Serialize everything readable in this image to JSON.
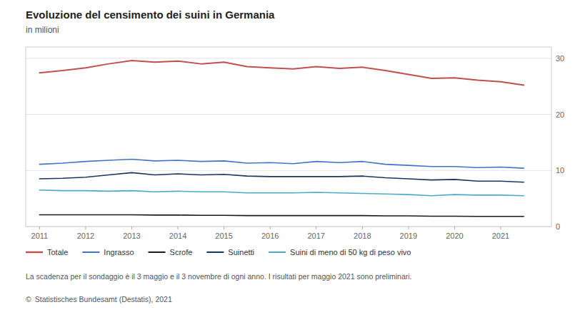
{
  "chart_data": {
    "type": "line",
    "title": "Evoluzione del censimento dei suini in Germania",
    "subtitle": "in milioni",
    "annotations": [
      "La scadenza per il sondaggio è il 3 maggio e il 3 novembre di ogni anno. I risultati per maggio 2021 sono preliminari.",
      "©",
      "Statistisches Bundesamt (Destatis), 2021"
    ],
    "x": [
      2011.0,
      2011.5,
      2012.0,
      2012.5,
      2013.0,
      2013.5,
      2014.0,
      2014.5,
      2015.0,
      2015.5,
      2016.0,
      2016.5,
      2017.0,
      2017.5,
      2018.0,
      2018.5,
      2019.0,
      2019.5,
      2020.0,
      2020.5,
      2021.0,
      2021.5
    ],
    "series": [
      {
        "name": "Totale",
        "color": "#c0504d",
        "values": [
          27.4,
          27.8,
          28.3,
          29.0,
          29.6,
          29.3,
          29.5,
          29.0,
          29.3,
          28.5,
          28.3,
          28.1,
          28.5,
          28.2,
          28.4,
          27.8,
          27.1,
          26.4,
          26.5,
          26.1,
          25.8,
          25.2
        ]
      },
      {
        "name": "Ingrasso",
        "color": "#4472c4",
        "values": [
          11.1,
          11.3,
          11.6,
          11.8,
          12.0,
          11.7,
          11.8,
          11.6,
          11.7,
          11.3,
          11.4,
          11.2,
          11.6,
          11.4,
          11.6,
          11.1,
          10.9,
          10.7,
          10.7,
          10.5,
          10.6,
          10.4
        ]
      },
      {
        "name": "Scrofe",
        "color": "#1a1a1a",
        "values": [
          2.1,
          2.1,
          2.1,
          2.1,
          2.1,
          2.05,
          2.05,
          2.0,
          2.0,
          1.95,
          1.95,
          1.95,
          1.95,
          1.95,
          1.95,
          1.9,
          1.9,
          1.85,
          1.85,
          1.8,
          1.8,
          1.8
        ]
      },
      {
        "name": "Suinetti",
        "color": "#17375e",
        "values": [
          8.5,
          8.6,
          8.8,
          9.2,
          9.6,
          9.2,
          9.4,
          9.2,
          9.3,
          9.0,
          8.9,
          8.9,
          8.9,
          8.9,
          9.0,
          8.7,
          8.5,
          8.3,
          8.4,
          8.1,
          8.1,
          7.9
        ]
      },
      {
        "name": "Suini di meno di 50 kg di peso vivo",
        "color": "#4bacc6",
        "values": [
          6.5,
          6.4,
          6.4,
          6.3,
          6.4,
          6.2,
          6.3,
          6.2,
          6.2,
          6.0,
          6.0,
          6.0,
          6.1,
          6.0,
          5.9,
          5.8,
          5.7,
          5.5,
          5.7,
          5.6,
          5.6,
          5.5
        ]
      }
    ],
    "xlim": [
      2010.7,
      2022.1
    ],
    "xticks": [
      2011,
      2012,
      2013,
      2014,
      2015,
      2016,
      2017,
      2018,
      2019,
      2020,
      2021
    ],
    "ylim": [
      0,
      32
    ],
    "yticks": [
      0,
      10,
      20,
      30
    ],
    "grid": true,
    "legend": "bottom"
  }
}
